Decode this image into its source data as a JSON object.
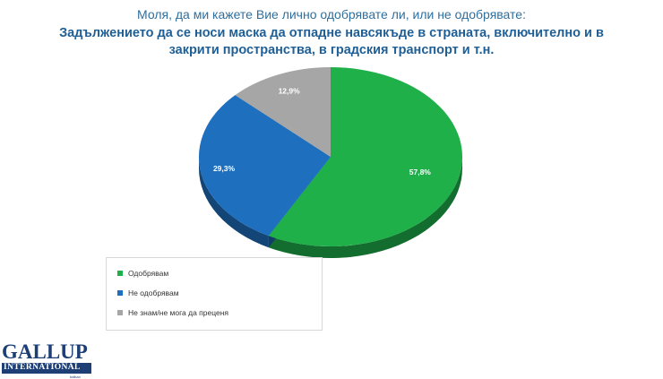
{
  "question": "Моля, да ми кажете Вие лично одобрявате ли, или не одобрявате:",
  "title_line1": "Задължението да се носи маска да отпадне навсякъде в страната, включително и в",
  "title_line2": "закрити пространства, в градския транспорт и т.н.",
  "chart_data": {
    "type": "pie",
    "title": "Задължението да се носи маска да отпадне навсякъде в страната, включително и в закрити пространства, в градския транспорт и т.н.",
    "slices": [
      {
        "label": "Одобрявам",
        "value": 57.8,
        "display": "57,8%",
        "color": "#1fb04a"
      },
      {
        "label": "Не одобрявам",
        "value": 29.3,
        "display": "29,3%",
        "color": "#1f6fbf"
      },
      {
        "label": "Не знам/не мога да преценя",
        "value": 12.9,
        "display": "12,9%",
        "color": "#a6a6a6"
      }
    ],
    "legend_position": "bottom-left"
  },
  "logo": {
    "top": "GALLUP",
    "bottom": "INTERNATIONAL",
    "sub": "balkan"
  }
}
